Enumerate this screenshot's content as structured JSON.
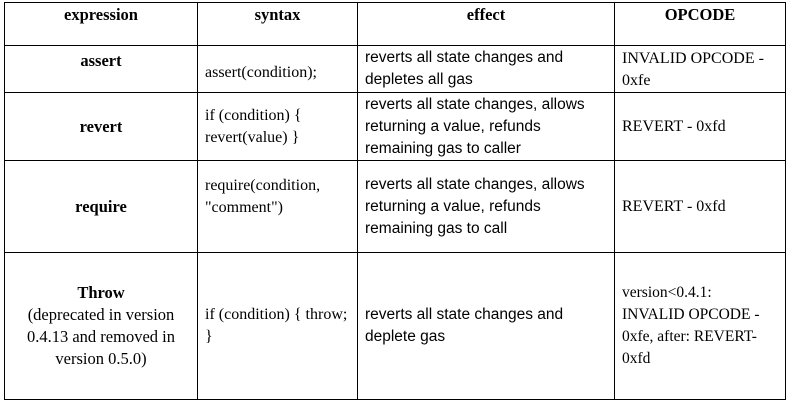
{
  "headers": [
    "expression",
    "syntax",
    "effect",
    "OPCODE"
  ],
  "rows": [
    {
      "expression": "assert",
      "expression_note": "",
      "syntax": "assert(condition);",
      "effect": "reverts all state changes and depletes all gas",
      "opcode": "INVALID OPCODE - 0xfe"
    },
    {
      "expression": "revert",
      "expression_note": "",
      "syntax": "if (condition) { revert(value) }",
      "effect": "reverts all state changes, allows returning a value, refunds remaining gas to caller",
      "opcode": "REVERT - 0xfd"
    },
    {
      "expression": "require",
      "expression_note": "",
      "syntax": "require(condition, \"comment\")",
      "effect": "reverts all state changes, allows returning a value, refunds remaining gas to call",
      "opcode": "REVERT - 0xfd"
    },
    {
      "expression": "Throw",
      "expression_note": "(deprecated in version 0.4.13 and removed in version 0.5.0)",
      "syntax": "if (condition) { throw; }",
      "effect": "reverts all state changes and deplete gas",
      "opcode": "version<0.4.1: INVALID OPCODE - 0xfe, after: REVERT- 0xfd"
    }
  ]
}
